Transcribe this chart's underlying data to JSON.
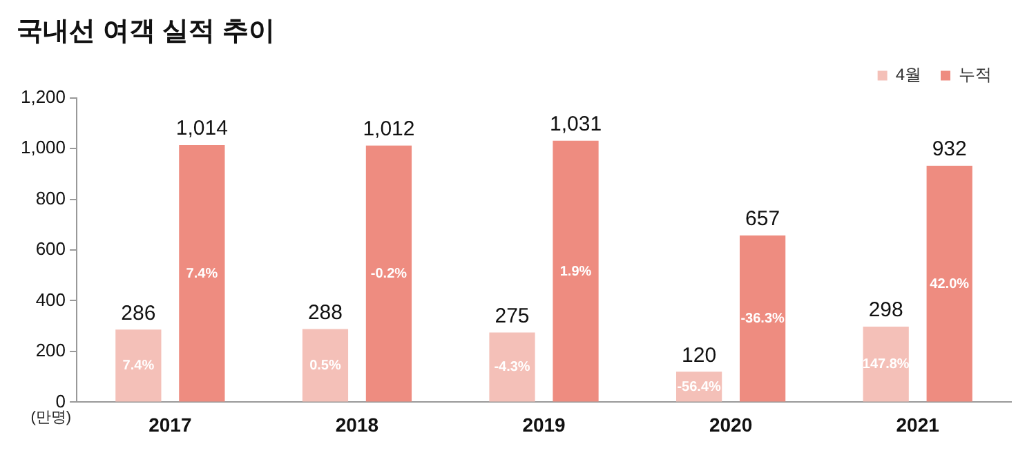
{
  "chart_data": {
    "type": "bar",
    "title": "국내선 여객 실적 추이",
    "ylabel": "(만명)",
    "categories": [
      "2017",
      "2018",
      "2019",
      "2020",
      "2021"
    ],
    "series": [
      {
        "name": "4월",
        "color": "#f4c0b8",
        "values": [
          286,
          288,
          275,
          120,
          298
        ],
        "value_labels": [
          "286",
          "288",
          "275",
          "120",
          "298"
        ]
      },
      {
        "name": "누적",
        "color": "#ee8c80",
        "values": [
          1014,
          1012,
          1031,
          657,
          932
        ],
        "value_labels": [
          "1,014",
          "1,012",
          "1,031",
          "657",
          "932"
        ]
      }
    ],
    "ylim": [
      0,
      1200
    ],
    "yticks": [
      0,
      200,
      400,
      600,
      800,
      {
        "value": 1000,
        "label": "1,000"
      },
      {
        "value": 1200,
        "label": "1,200"
      }
    ],
    "grid": false,
    "legend": "top right",
    "annotations": [
      "7.4%",
      "0.5%",
      "-4.3%",
      "-56.4%",
      "147.8%",
      "7.4%",
      "-0.2%",
      "1.9%",
      "-36.3%",
      "42.0%"
    ]
  }
}
